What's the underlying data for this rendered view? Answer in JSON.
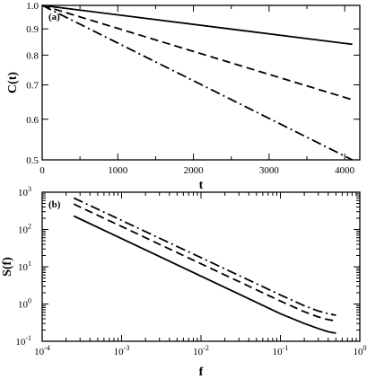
{
  "chart_data": [
    {
      "type": "line",
      "panel_label": "(a)",
      "xlabel": "t",
      "ylabel": "C(t)",
      "xlim": [
        0,
        4200
      ],
      "ylim": [
        0.5,
        1.0
      ],
      "yscale": "log",
      "xticks": [
        0,
        1000,
        2000,
        3000,
        4000
      ],
      "xtick_labels": [
        "0",
        "1000",
        "2000",
        "3000",
        "4000"
      ],
      "yticks": [
        0.5,
        0.6,
        0.7,
        0.8,
        0.9,
        1.0
      ],
      "ytick_labels": [
        "0.5",
        "0.6",
        "0.7",
        "0.8",
        "0.9",
        "1.0"
      ],
      "grid": false,
      "series": [
        {
          "style": "solid",
          "x": [
            0,
            4100
          ],
          "y": [
            1.0,
            0.84
          ]
        },
        {
          "style": "dashed",
          "x": [
            0,
            4100
          ],
          "y": [
            1.0,
            0.655
          ]
        },
        {
          "style": "dash-dot",
          "x": [
            0,
            4100
          ],
          "y": [
            1.0,
            0.5
          ]
        }
      ]
    },
    {
      "type": "line",
      "panel_label": "(b)",
      "xlabel": "f",
      "ylabel": "S(f)",
      "xscale": "log",
      "yscale": "log",
      "xlim": [
        0.0001,
        1
      ],
      "ylim": [
        0.1,
        1000
      ],
      "xticks": [
        0.0001,
        0.001,
        0.01,
        0.1,
        1
      ],
      "xtick_labels": [
        [
          "10",
          "-4"
        ],
        [
          "10",
          "-3"
        ],
        [
          "10",
          "-2"
        ],
        [
          "10",
          "-1"
        ],
        [
          "10",
          "0"
        ]
      ],
      "yticks": [
        0.1,
        1,
        10,
        100,
        1000
      ],
      "ytick_labels": [
        [
          "10",
          "-1"
        ],
        [
          "10",
          "0"
        ],
        [
          "10",
          "1"
        ],
        [
          "10",
          "2"
        ],
        [
          "10",
          "3"
        ]
      ],
      "grid": false,
      "series": [
        {
          "style": "solid",
          "x": [
            0.00025,
            0.1,
            0.2,
            0.3,
            0.4,
            0.5
          ],
          "y": [
            230,
            0.55,
            0.3,
            0.22,
            0.18,
            0.165
          ]
        },
        {
          "style": "dashed",
          "x": [
            0.00025,
            0.1,
            0.2,
            0.3,
            0.4,
            0.5
          ],
          "y": [
            480,
            1.2,
            0.62,
            0.45,
            0.38,
            0.35
          ]
        },
        {
          "style": "dash-dot",
          "x": [
            0.00025,
            0.1,
            0.2,
            0.3,
            0.4,
            0.5
          ],
          "y": [
            700,
            1.75,
            0.9,
            0.65,
            0.55,
            0.5
          ]
        }
      ]
    }
  ]
}
